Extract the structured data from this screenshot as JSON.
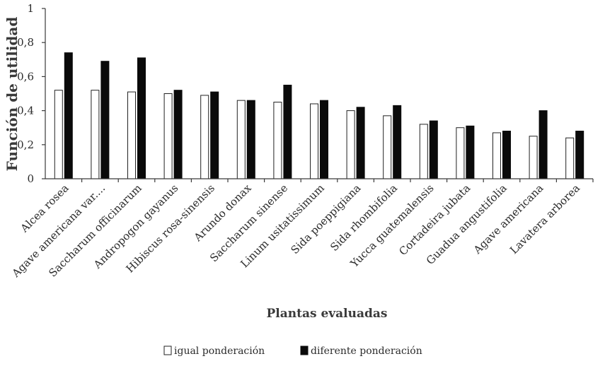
{
  "chart_data": {
    "type": "bar",
    "xlabel": "Plantas evaluadas",
    "ylabel": "Función de utilidad",
    "ylim": [
      0,
      1
    ],
    "yticks": [
      "0",
      "0,2",
      "0,4",
      "0,6",
      "0,8",
      "1"
    ],
    "grid": false,
    "legend_position": "bottom",
    "categories": [
      "Alcea rosea",
      "Agave americana var....",
      "Saccharum officinarum",
      "Andropogon gayanus",
      "Hibiscus rosa-sinensis",
      "Arundo donax",
      "Saccharum sinense",
      "Linum usitatissimum",
      "Sida poeppigiana",
      "Sida rhombifolia",
      "Yucca guatemalensis",
      "Cortadeira jubata",
      "Guadua angustifolia",
      "Agave americana",
      "Lavatera arborea"
    ],
    "series": [
      {
        "name": "igual ponderación",
        "color": "#ffffff",
        "values": [
          0.52,
          0.52,
          0.51,
          0.5,
          0.49,
          0.46,
          0.45,
          0.44,
          0.4,
          0.37,
          0.32,
          0.3,
          0.27,
          0.25,
          0.24
        ]
      },
      {
        "name": "diferente ponderación",
        "color": "#0a0a0a",
        "values": [
          0.74,
          0.69,
          0.71,
          0.52,
          0.51,
          0.46,
          0.55,
          0.46,
          0.42,
          0.43,
          0.34,
          0.31,
          0.28,
          0.4,
          0.28
        ]
      }
    ]
  }
}
